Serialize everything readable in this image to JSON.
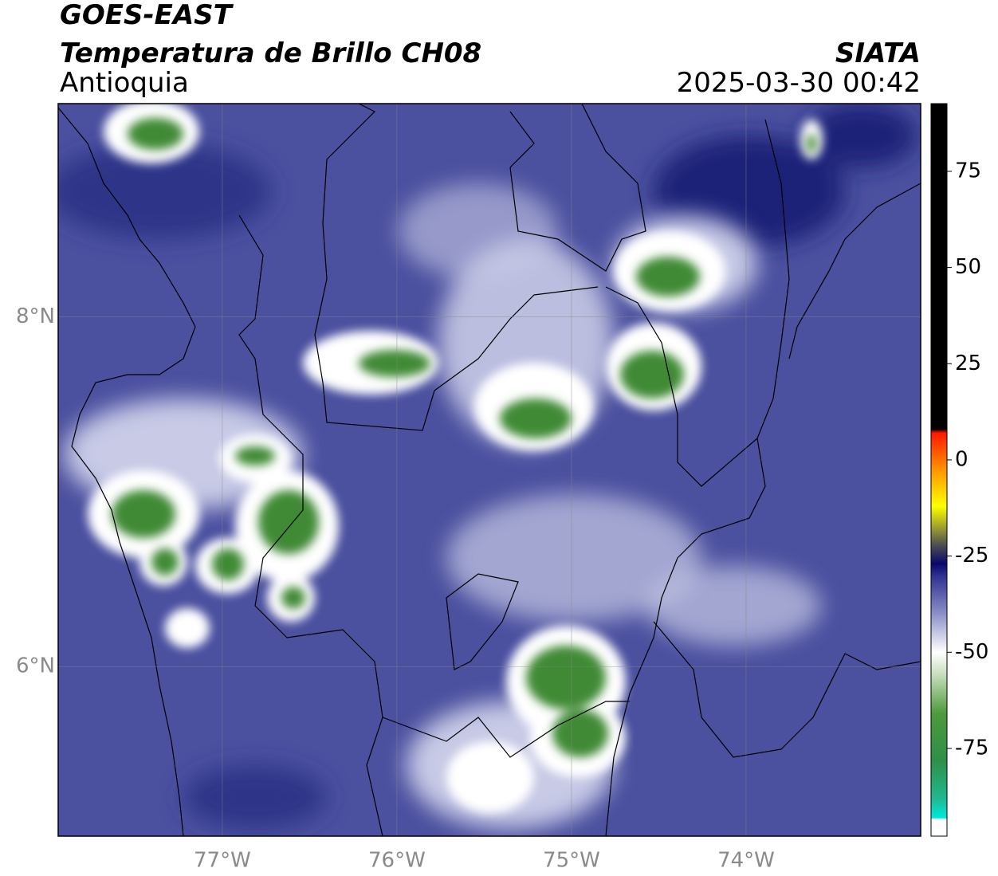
{
  "header": {
    "title": "GOES-EAST",
    "subtitle": "Temperatura de Brillo CH08",
    "region": "Antioquia",
    "source": "SIATA",
    "datetime": "2025-03-30 00:42"
  },
  "map": {
    "lonlim": [
      -77.94,
      -73.0
    ],
    "latlim": [
      5.03,
      9.22
    ],
    "lonticks": [
      {
        "value": -77,
        "label": "77°W"
      },
      {
        "value": -76,
        "label": "76°W"
      },
      {
        "value": -75,
        "label": "75°W"
      },
      {
        "value": -74,
        "label": "74°W"
      }
    ],
    "latticks": [
      {
        "value": 8,
        "label": "8°N"
      },
      {
        "value": 6,
        "label": "6°N"
      }
    ],
    "grid": true
  },
  "colorbar": {
    "lim": [
      -97.8,
      92.6
    ],
    "ticks": [
      75,
      50,
      25,
      0,
      -25,
      -50,
      -75
    ],
    "stops": [
      {
        "value": -97.8,
        "color": "#ffffff"
      },
      {
        "value": -93.5,
        "color": "#ffffff"
      },
      {
        "value": -93,
        "color": "#00e8dc"
      },
      {
        "value": -88,
        "color": "#20b890"
      },
      {
        "value": -78,
        "color": "#2f8f48"
      },
      {
        "value": -66,
        "color": "#4c9a3c"
      },
      {
        "value": -56,
        "color": "#c6dcbc"
      },
      {
        "value": -50,
        "color": "#ffffff"
      },
      {
        "value": -40,
        "color": "#8c90c8"
      },
      {
        "value": -30,
        "color": "#2c3090"
      },
      {
        "value": -27,
        "color": "#08086c"
      },
      {
        "value": -22,
        "color": "#505050"
      },
      {
        "value": -12,
        "color": "#ffff00"
      },
      {
        "value": -3,
        "color": "#ff9900"
      },
      {
        "value": 7,
        "color": "#ff1800"
      },
      {
        "value": 8,
        "color": "#000000"
      },
      {
        "value": 92.6,
        "color": "#000000"
      }
    ]
  }
}
